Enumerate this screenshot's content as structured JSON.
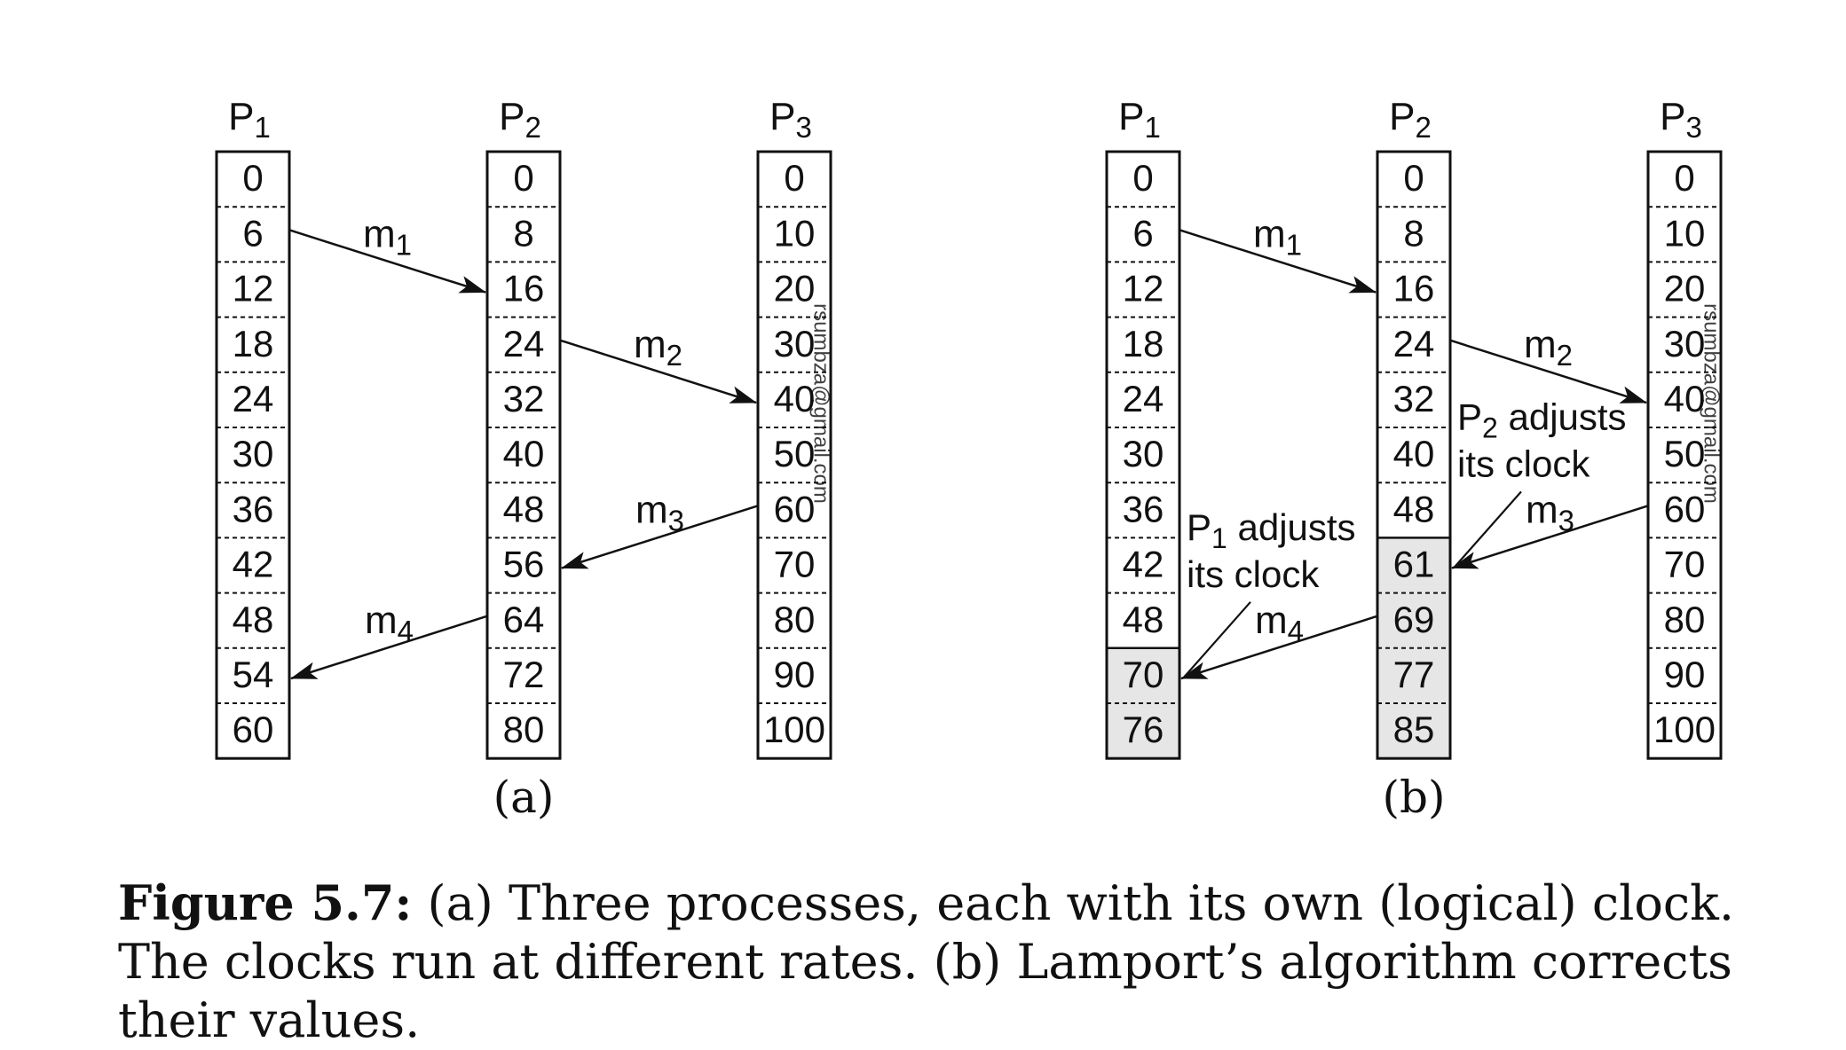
{
  "panels": [
    {
      "id": "a",
      "label": "(a)",
      "processes": [
        {
          "name": "P",
          "sub": "1",
          "values": [
            "0",
            "6",
            "12",
            "18",
            "24",
            "30",
            "36",
            "42",
            "48",
            "54",
            "60"
          ],
          "adjusted_from": null
        },
        {
          "name": "P",
          "sub": "2",
          "values": [
            "0",
            "8",
            "16",
            "24",
            "32",
            "40",
            "48",
            "56",
            "64",
            "72",
            "80"
          ],
          "adjusted_from": null
        },
        {
          "name": "P",
          "sub": "3",
          "values": [
            "0",
            "10",
            "20",
            "30",
            "40",
            "50",
            "60",
            "70",
            "80",
            "90",
            "100"
          ],
          "adjusted_from": null
        }
      ],
      "messages": [
        {
          "name": "m",
          "sub": "1",
          "from_process": 0,
          "from_row": 1,
          "to_process": 1,
          "to_row": 2
        },
        {
          "name": "m",
          "sub": "2",
          "from_process": 1,
          "from_row": 3,
          "to_process": 2,
          "to_row": 4
        },
        {
          "name": "m",
          "sub": "3",
          "from_process": 2,
          "from_row": 6,
          "to_process": 1,
          "to_row": 7
        },
        {
          "name": "m",
          "sub": "4",
          "from_process": 1,
          "from_row": 8,
          "to_process": 0,
          "to_row": 9
        }
      ],
      "annotations": []
    },
    {
      "id": "b",
      "label": "(b)",
      "processes": [
        {
          "name": "P",
          "sub": "1",
          "values": [
            "0",
            "6",
            "12",
            "18",
            "24",
            "30",
            "36",
            "42",
            "48",
            "70",
            "76"
          ],
          "adjusted_from": 9
        },
        {
          "name": "P",
          "sub": "2",
          "values": [
            "0",
            "8",
            "16",
            "24",
            "32",
            "40",
            "48",
            "61",
            "69",
            "77",
            "85"
          ],
          "adjusted_from": 7
        },
        {
          "name": "P",
          "sub": "3",
          "values": [
            "0",
            "10",
            "20",
            "30",
            "40",
            "50",
            "60",
            "70",
            "80",
            "90",
            "100"
          ],
          "adjusted_from": null
        }
      ],
      "messages": [
        {
          "name": "m",
          "sub": "1",
          "from_process": 0,
          "from_row": 1,
          "to_process": 1,
          "to_row": 2
        },
        {
          "name": "m",
          "sub": "2",
          "from_process": 1,
          "from_row": 3,
          "to_process": 2,
          "to_row": 4
        },
        {
          "name": "m",
          "sub": "3",
          "from_process": 2,
          "from_row": 6,
          "to_process": 1,
          "to_row": 7
        },
        {
          "name": "m",
          "sub": "4",
          "from_process": 1,
          "from_row": 8,
          "to_process": 0,
          "to_row": 9
        }
      ],
      "annotations": [
        {
          "pre": "P",
          "sub": "2",
          "line1": " adjusts",
          "line2": "its clock",
          "process": 1,
          "row": 7
        },
        {
          "pre": "P",
          "sub": "1",
          "line1": " adjusts",
          "line2": "its clock",
          "process": 0,
          "row": 9
        }
      ]
    }
  ],
  "watermark": "rsumbza@gmail.com",
  "caption": {
    "label": "Figure 5.7:",
    "text": " (a) Three processes, each with its own (logical) clock. The clocks run at different rates. (b) Lamport’s algorithm corrects their values."
  },
  "colors": {
    "line": "#111111",
    "adjusted_fill": "#e6e6e6",
    "watermark": "#e8a0a0"
  }
}
